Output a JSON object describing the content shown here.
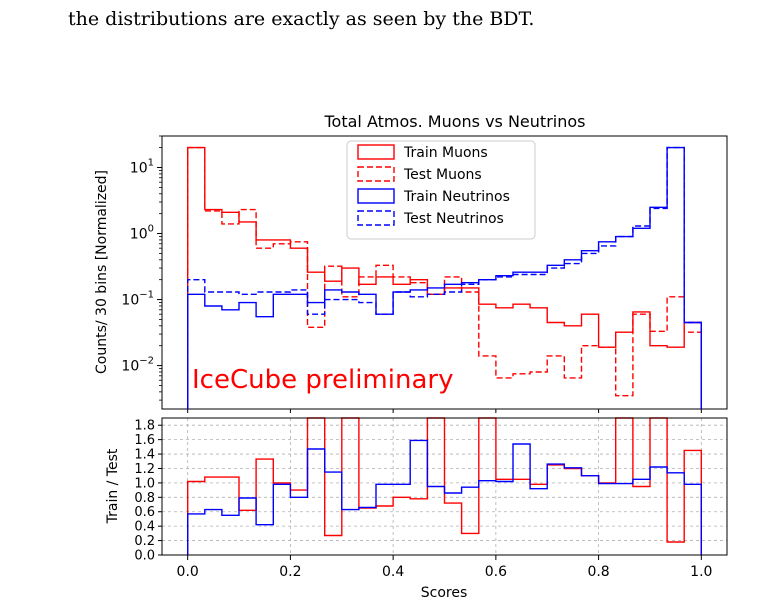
{
  "caption": "the distributions are exactly as seen by the BDT.",
  "chart_data": [
    {
      "type": "step-histogram",
      "title": "Total Atmos. Muons vs Neutrinos",
      "xlabel": "",
      "ylabel": "Counts/ 30 bins [Normalized]",
      "yscale": "log",
      "xlim": [
        -0.05,
        1.05
      ],
      "ylim": [
        0.0022,
        30
      ],
      "yticks": [
        {
          "value": 0.01,
          "base": "10",
          "exp": "−2"
        },
        {
          "value": 0.1,
          "base": "10",
          "exp": "−1"
        },
        {
          "value": 1,
          "base": "10",
          "exp": "0"
        },
        {
          "value": 10,
          "base": "10",
          "exp": "1"
        }
      ],
      "bin_edges": [
        0.0,
        0.0333,
        0.0667,
        0.1,
        0.1333,
        0.1667,
        0.2,
        0.2333,
        0.2667,
        0.3,
        0.3333,
        0.3667,
        0.4,
        0.4333,
        0.4667,
        0.5,
        0.5333,
        0.5667,
        0.6,
        0.6333,
        0.6667,
        0.7,
        0.7333,
        0.7667,
        0.8,
        0.8333,
        0.8667,
        0.9,
        0.9333,
        0.9667,
        1.0
      ],
      "annotation": "IceCube preliminary",
      "legend_position": "top-center",
      "series": [
        {
          "name": "Train Muons",
          "color": "#ff0000",
          "style": "solid",
          "values": [
            20,
            2.3,
            2.1,
            1.5,
            0.8,
            0.8,
            0.6,
            0.26,
            0.19,
            0.3,
            0.17,
            0.22,
            0.17,
            0.2,
            0.12,
            0.15,
            0.15,
            0.085,
            0.075,
            0.085,
            0.075,
            0.045,
            0.04,
            0.06,
            0.019,
            0.032,
            0.065,
            0.02,
            0.019,
            0.045
          ]
        },
        {
          "name": "Test Muons",
          "color": "#ff0000",
          "style": "dashed",
          "values": [
            20,
            2.2,
            1.4,
            2.3,
            0.6,
            0.7,
            0.75,
            0.038,
            0.32,
            0.11,
            0.22,
            0.33,
            0.22,
            0.18,
            0.12,
            0.22,
            0.13,
            0.014,
            0.0065,
            0.0075,
            0.008,
            0.014,
            0.0065,
            0.02,
            0.019,
            0.0035,
            0.06,
            0.033,
            0.11,
            0.032
          ]
        },
        {
          "name": "Train Neutrinos",
          "color": "#0000ff",
          "style": "solid",
          "values": [
            0.12,
            0.08,
            0.07,
            0.09,
            0.055,
            0.12,
            0.12,
            0.09,
            0.14,
            0.13,
            0.12,
            0.06,
            0.13,
            0.14,
            0.15,
            0.17,
            0.18,
            0.2,
            0.23,
            0.26,
            0.26,
            0.33,
            0.4,
            0.55,
            0.75,
            0.9,
            1.2,
            2.5,
            20,
            0.045
          ]
        },
        {
          "name": "Test Neutrinos",
          "color": "#0000ff",
          "style": "dashed",
          "values": [
            0.2,
            0.13,
            0.13,
            0.12,
            0.13,
            0.13,
            0.14,
            0.06,
            0.1,
            0.1,
            0.09,
            0.06,
            0.13,
            0.11,
            0.12,
            0.13,
            0.17,
            0.2,
            0.22,
            0.24,
            0.24,
            0.3,
            0.35,
            0.5,
            0.65,
            0.9,
            1.3,
            2.4,
            20,
            0.045
          ]
        }
      ]
    },
    {
      "type": "step-histogram",
      "title": "",
      "xlabel": "Scores",
      "ylabel": "Train / Test",
      "xlim": [
        -0.05,
        1.05
      ],
      "ylim": [
        0,
        1.9
      ],
      "xticks": [
        "0.0",
        "0.2",
        "0.4",
        "0.6",
        "0.8",
        "1.0"
      ],
      "yticks": [
        "0.0",
        "0.2",
        "0.4",
        "0.6",
        "0.8",
        "1.0",
        "1.2",
        "1.4",
        "1.6",
        "1.8"
      ],
      "grid": true,
      "bin_edges": [
        0.0,
        0.0333,
        0.0667,
        0.1,
        0.1333,
        0.1667,
        0.2,
        0.2333,
        0.2667,
        0.3,
        0.3333,
        0.3667,
        0.4,
        0.4333,
        0.4667,
        0.5,
        0.5333,
        0.5667,
        0.6,
        0.6333,
        0.6667,
        0.7,
        0.7333,
        0.7667,
        0.8,
        0.8333,
        0.8667,
        0.9,
        0.9333,
        0.9667,
        1.0
      ],
      "series": [
        {
          "color": "#ff0000",
          "values": [
            1.02,
            1.08,
            1.08,
            0.62,
            1.33,
            1.0,
            0.9,
            3.5,
            0.27,
            3.0,
            0.65,
            0.68,
            0.8,
            0.78,
            3.0,
            0.72,
            0.3,
            3.0,
            1.05,
            1.05,
            0.98,
            1.25,
            1.2,
            1.1,
            1.0,
            3.0,
            0.95,
            3.0,
            0.18,
            1.45
          ]
        },
        {
          "color": "#0000ff",
          "values": [
            0.57,
            0.63,
            0.55,
            0.79,
            0.42,
            0.98,
            0.8,
            1.47,
            1.15,
            0.63,
            0.66,
            0.98,
            0.98,
            1.59,
            0.95,
            0.86,
            0.94,
            1.03,
            1.02,
            1.54,
            0.92,
            1.26,
            1.21,
            1.1,
            0.99,
            0.99,
            1.05,
            1.22,
            1.14,
            0.98
          ]
        }
      ]
    }
  ]
}
